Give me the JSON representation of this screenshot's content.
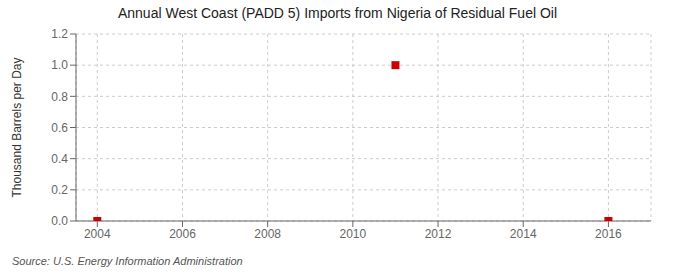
{
  "chart_data": {
    "type": "scatter",
    "title": "Annual West Coast (PADD 5) Imports from Nigeria of Residual Fuel Oil",
    "ylabel": "Thousand Barrels per Day",
    "annotation": "Source: U.S. Energy Information Administration",
    "x": [
      2004,
      2011,
      2016
    ],
    "values": [
      0.0,
      1.0,
      0.0
    ],
    "color": "#cc0000",
    "marker": "square",
    "xlim": [
      2003.5,
      2017.0
    ],
    "ylim": [
      0.0,
      1.2
    ],
    "xticks": [
      2004,
      2006,
      2008,
      2010,
      2012,
      2014,
      2016
    ],
    "yticks": [
      {
        "value": 0,
        "label": "0.0"
      },
      0.2,
      0.4,
      0.6,
      0.8,
      {
        "value": 1,
        "label": "1.0"
      },
      1.2
    ],
    "grid": true
  }
}
